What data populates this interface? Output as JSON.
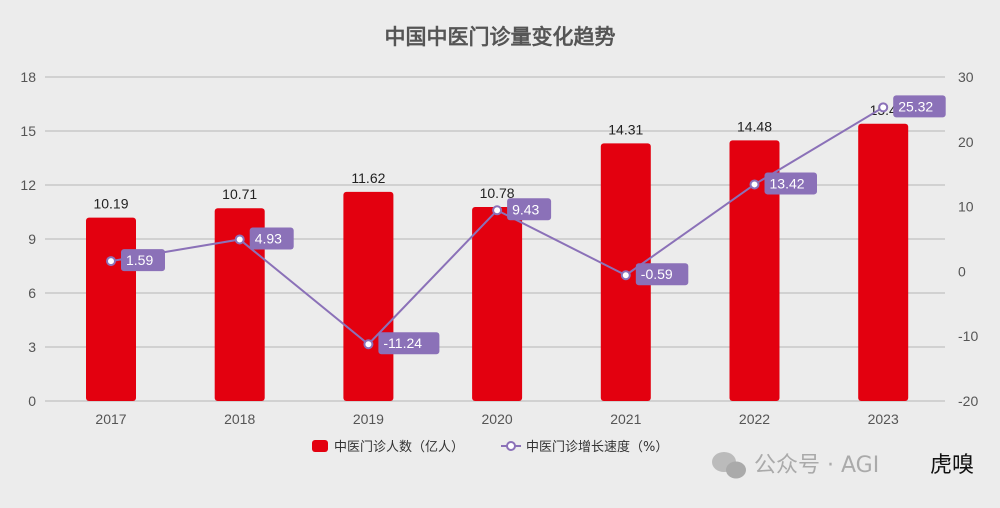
{
  "chart_data": {
    "type": "bar+line",
    "title": "中国中医门诊量变化趋势",
    "categories": [
      "2017",
      "2018",
      "2019",
      "2020",
      "2021",
      "2022",
      "2023"
    ],
    "series": [
      {
        "name": "中医门诊人数（亿人）",
        "type": "bar",
        "axis": "left",
        "values": [
          10.19,
          10.71,
          11.62,
          10.78,
          14.31,
          14.48,
          15.4
        ],
        "labels": [
          "10.19",
          "10.71",
          "11.62",
          "10.78",
          "14.31",
          "14.48",
          "15.4"
        ]
      },
      {
        "name": "中医门诊增长速度（%）",
        "type": "line",
        "axis": "right",
        "values": [
          1.59,
          4.93,
          -11.24,
          9.43,
          -0.59,
          13.42,
          25.32
        ],
        "labels": [
          "1.59",
          "4.93",
          "-11.24",
          "9.43",
          "-0.59",
          "13.42",
          "25.32"
        ]
      }
    ],
    "y_left": {
      "range": [
        0,
        18
      ],
      "ticks": [
        "0",
        "3",
        "6",
        "9",
        "12",
        "15",
        "18"
      ]
    },
    "y_right": {
      "range": [
        -20,
        30
      ],
      "ticks": [
        "-20",
        "-10",
        "0",
        "10",
        "20",
        "30"
      ]
    },
    "grid": true,
    "legend": "bottom",
    "colors": {
      "bar": "#e3000f",
      "line": "#8b71b8",
      "background": "#ececec"
    }
  },
  "watermark": {
    "text": "公众号 · AGI",
    "logo": "虎嗅",
    "icon": "wechat-icon"
  }
}
